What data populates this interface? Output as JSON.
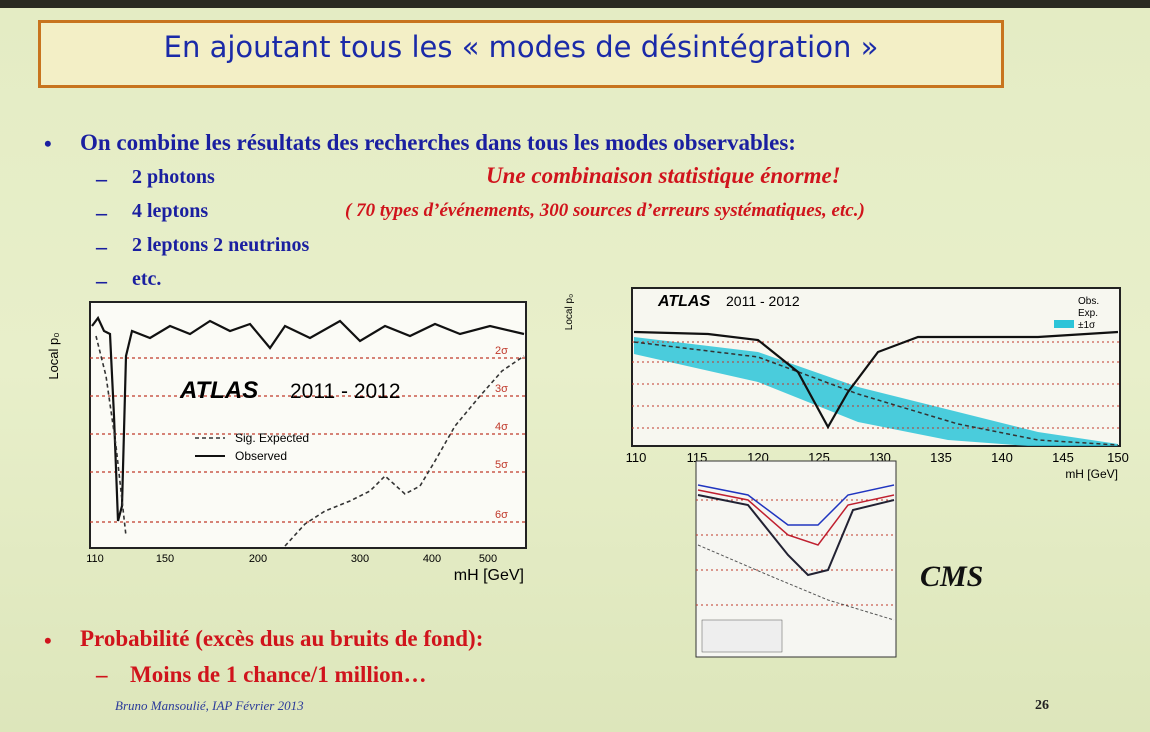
{
  "title": "En ajoutant tous les « modes de désintégration »",
  "intro": "On combine les résultats des recherches dans tous les modes observables:",
  "items": [
    "2 photons",
    "4 leptons",
    "2 leptons 2 neutrinos",
    "etc."
  ],
  "highlight": "Une combinaison statistique énorme!",
  "detail": "( 70  types d’événements, 300 sources d’erreurs systématiques, etc.)",
  "atlas_left": {
    "experiment": "ATLAS",
    "years": "2011 - 2012",
    "y_label": "Local p₀",
    "x_label": "mH [GeV]",
    "legend": [
      "Sig. Expected",
      "Observed"
    ],
    "x_ticks": [
      "110",
      "150",
      "200",
      "300",
      "400",
      "500"
    ],
    "sigma_labels": [
      "2σ",
      "3σ",
      "4σ",
      "5σ",
      "6σ"
    ]
  },
  "atlas_right": {
    "experiment": "ATLAS",
    "years": "2011 - 2012",
    "y_label": "Local p₀",
    "x_label": "mH [GeV]",
    "legend": [
      "Obs.",
      "Exp.",
      "±1σ"
    ],
    "x_ticks": [
      "110",
      "115",
      "120",
      "125",
      "130",
      "135",
      "140",
      "145",
      "150"
    ]
  },
  "cms_label": "CMS",
  "conclusion": "Probabilité (excès dus au bruits de fond):",
  "conclusion_item": "Moins de 1 chance/1 million…",
  "footer": "Bruno Mansoulié, IAP Février 2013",
  "page_number": "26"
}
